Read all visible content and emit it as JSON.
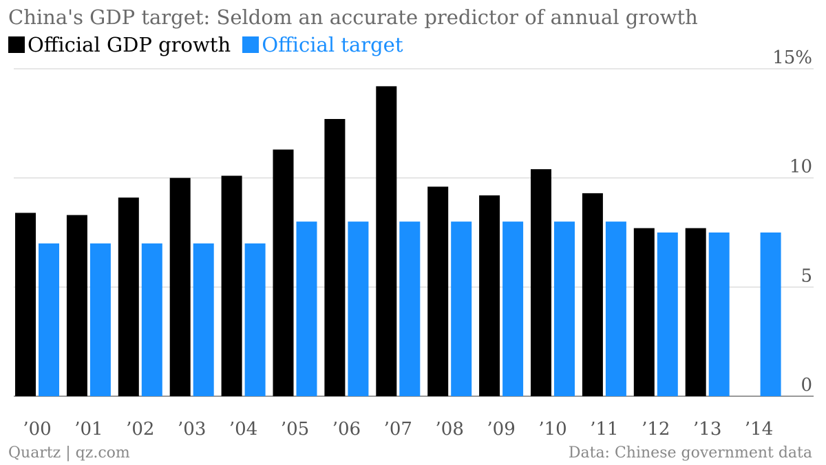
{
  "title": "China's GDP target: Seldom an accurate predictor of annual growth",
  "legend": [
    {
      "label": "Official GDP growth",
      "color": "#000000"
    },
    {
      "label": "Official target",
      "color": "#1a8fff"
    }
  ],
  "footer": {
    "source_left": "Quartz | qz.com",
    "source_right": "Data: Chinese government data"
  },
  "chart_data": {
    "type": "bar",
    "title": "China's GDP target: Seldom an accurate predictor of annual growth",
    "xlabel": "",
    "ylabel": "",
    "categories": [
      "’00",
      "’01",
      "’02",
      "’03",
      "’04",
      "’05",
      "’06",
      "’07",
      "’08",
      "’09",
      "’10",
      "’11",
      "’12",
      "’13",
      "’14"
    ],
    "series": [
      {
        "name": "Official GDP growth",
        "color": "#000000",
        "values": [
          8.4,
          8.3,
          9.1,
          10.0,
          10.1,
          11.3,
          12.7,
          14.2,
          9.6,
          9.2,
          10.4,
          9.3,
          7.7,
          7.7,
          null
        ]
      },
      {
        "name": "Official target",
        "color": "#1a8fff",
        "values": [
          7,
          7,
          7,
          7,
          7,
          8,
          8,
          8,
          8,
          8,
          8,
          8,
          7.5,
          7.5,
          7.5
        ]
      }
    ],
    "ylim": [
      0,
      15
    ],
    "yticks": [
      {
        "value": 0,
        "label": "0"
      },
      {
        "value": 5,
        "label": "5"
      },
      {
        "value": 10,
        "label": "10"
      },
      {
        "value": 15,
        "label": "15%"
      }
    ],
    "grid": true,
    "legend_position": "top-left"
  }
}
